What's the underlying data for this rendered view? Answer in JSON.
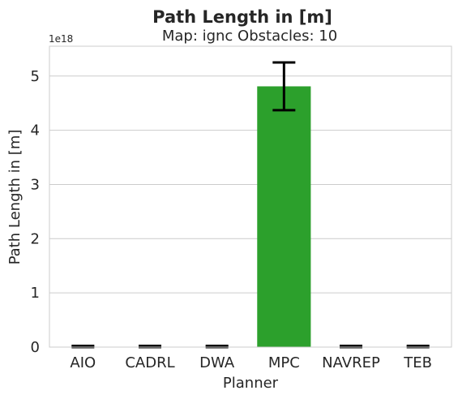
{
  "chart_data": {
    "type": "bar",
    "title": "Path Length in [m]",
    "subtitle": "Map: ignc Obstacles: 10",
    "xlabel": "Planner",
    "ylabel": "Path Length in [m]",
    "y_scale_label": "1e18",
    "categories": [
      "AIO",
      "CADRL",
      "DWA",
      "MPC",
      "NAVREP",
      "TEB"
    ],
    "values": [
      0,
      0,
      0,
      4.81,
      0,
      0
    ],
    "errors": [
      0,
      0,
      0,
      0.44,
      0,
      0
    ],
    "ylim": [
      0,
      5.55
    ],
    "yticks": [
      "0",
      "1",
      "2",
      "3",
      "4",
      "5"
    ],
    "grid": true,
    "legend": "none",
    "colors": {
      "bars": [
        "#1f77b4",
        "#ff7f0e",
        "#2ca02c",
        "#2ca02c",
        "#9467bd",
        "#8c564b"
      ],
      "grid": "#cccccc",
      "frame": "#cccccc",
      "error": "#000000"
    }
  }
}
